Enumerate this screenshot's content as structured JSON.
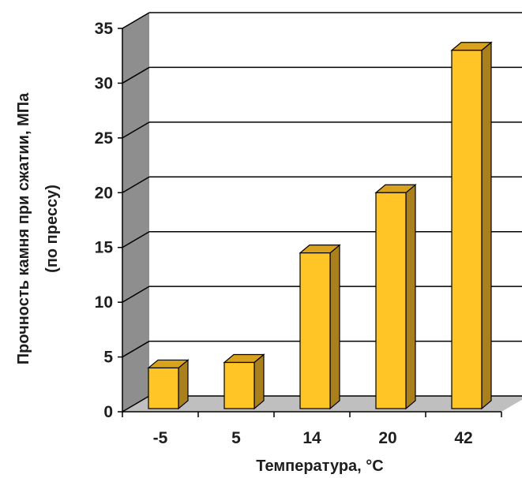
{
  "chart_data": {
    "type": "bar",
    "categories": [
      "-5",
      "5",
      "14",
      "20",
      "42"
    ],
    "values": [
      4,
      4.5,
      14.5,
      20,
      33
    ],
    "xlabel": "Температура, °C",
    "ylabel": "Прочность камня при сжатии, МПа",
    "ylabel_line2": "(по прессу)",
    "ylim": [
      0,
      35
    ],
    "yticks": [
      "0",
      "5",
      "10",
      "15",
      "20",
      "25",
      "30",
      "35"
    ],
    "grid": true,
    "style": "3d",
    "colors": {
      "bar_front": "#FFC425",
      "bar_side": "#A9801B",
      "bar_top": "#D9A21E",
      "wall": "#8E8E8E",
      "floor": "#BFBFBF",
      "grid": "#000000"
    }
  }
}
